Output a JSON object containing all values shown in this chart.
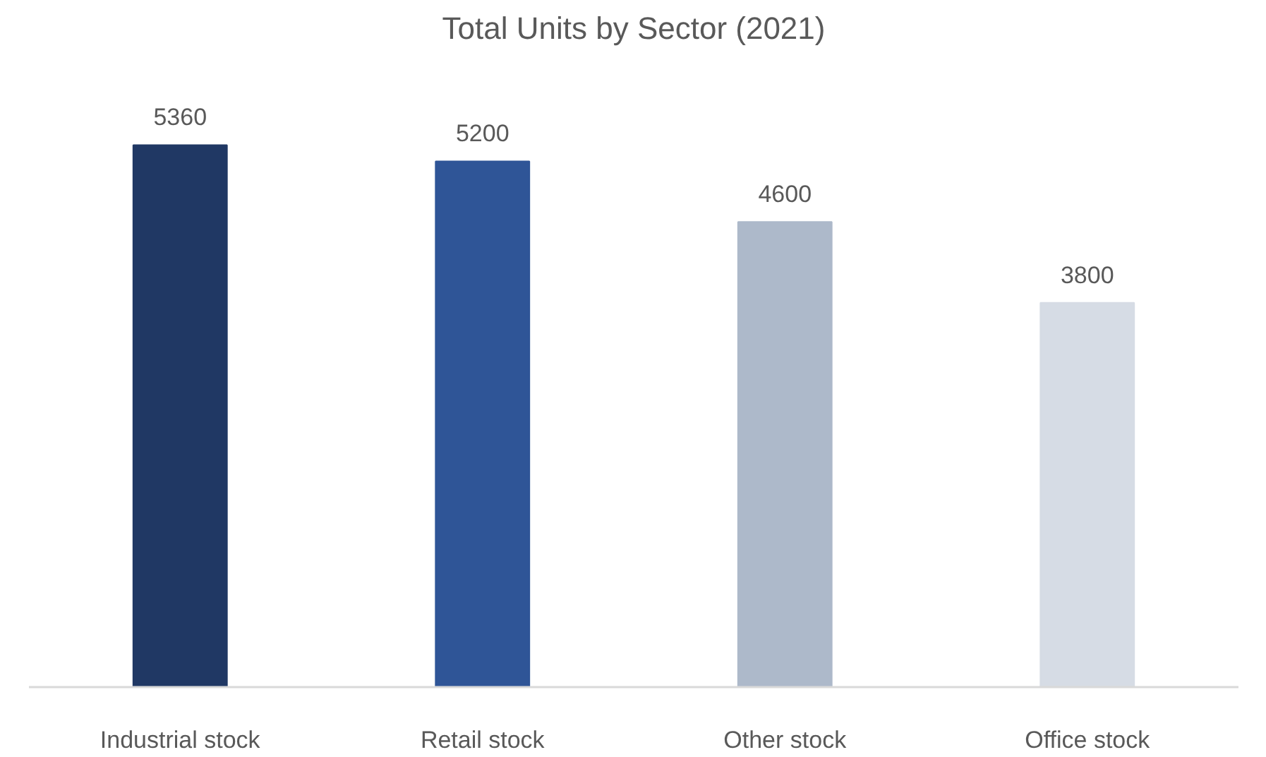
{
  "chart_data": {
    "type": "bar",
    "title": "Total Units by Sector (2021)",
    "categories": [
      "Industrial stock",
      "Retail stock",
      "Other stock",
      "Office stock"
    ],
    "values": [
      5360,
      5200,
      4600,
      3800
    ],
    "colors": [
      "#203864",
      "#2f5597",
      "#adb9ca",
      "#d6dce5"
    ],
    "data_labels": true,
    "grid": false
  }
}
